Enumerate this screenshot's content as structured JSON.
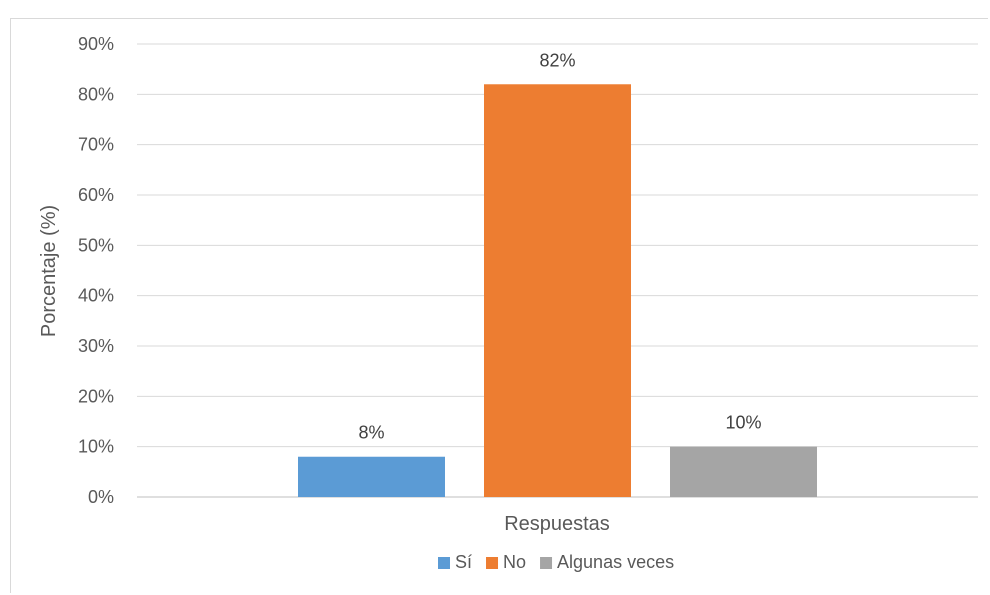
{
  "chart_data": {
    "type": "bar",
    "xlabel": "Respuestas",
    "ylabel": "Porcentaje (%)",
    "ylim": [
      0,
      90
    ],
    "y_ticks": [
      "0%",
      "10%",
      "20%",
      "30%",
      "40%",
      "50%",
      "60%",
      "70%",
      "80%",
      "90%"
    ],
    "grid": true,
    "legend_position": "bottom",
    "series": [
      {
        "name": "Sí",
        "value": 8,
        "label": "8%",
        "color": "#5B9BD5"
      },
      {
        "name": "No",
        "value": 82,
        "label": "82%",
        "color": "#ED7D31"
      },
      {
        "name": "Algunas veces",
        "value": 10,
        "label": "10%",
        "color": "#A5A5A5"
      }
    ]
  }
}
